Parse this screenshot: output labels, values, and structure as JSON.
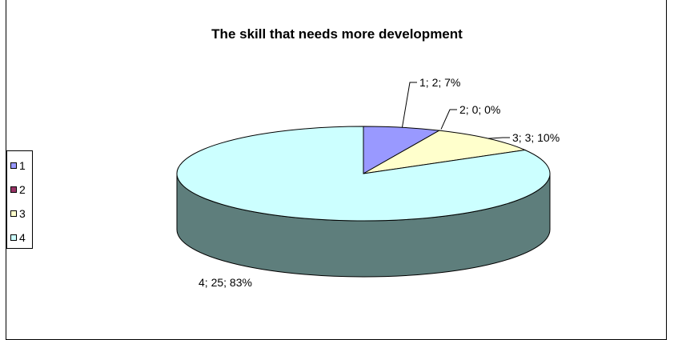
{
  "chart_data": {
    "type": "pie",
    "title": "The skill that needs more development",
    "categories": [
      "1",
      "2",
      "3",
      "4"
    ],
    "values": [
      2,
      0,
      3,
      25
    ],
    "percentages": [
      "7%",
      "0%",
      "10%",
      "83%"
    ],
    "data_labels": [
      "1; 2; 7%",
      "2; 0; 0%",
      "3; 3; 10%",
      "4; 25; 83%"
    ],
    "colors": [
      "#9999FF",
      "#993366",
      "#FFFFCC",
      "#CCFFFF"
    ],
    "side_color": "#5E7E7C",
    "legend_position": "left",
    "three_d": true
  }
}
